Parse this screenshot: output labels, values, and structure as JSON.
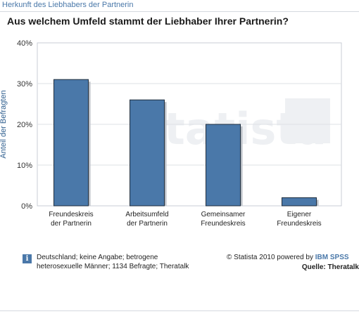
{
  "header": {
    "title": "Herkunft des Liebhabers der Partnerin"
  },
  "chart_data": {
    "type": "bar",
    "title": "Aus welchem Umfeld stammt der Liebhaber Ihrer Partnerin?",
    "ylabel": "Anteil der Befragten",
    "xlabel": "",
    "categories": [
      [
        "Freundeskreis",
        "der Partnerin"
      ],
      [
        "Arbeitsumfeld",
        "der Partnerin"
      ],
      [
        "Gemeinsamer",
        "Freundeskreis"
      ],
      [
        "Eigener",
        "Freundeskreis"
      ]
    ],
    "values": [
      31,
      26,
      20,
      2
    ],
    "unit": "%",
    "ylim": [
      0,
      40
    ],
    "yticks": [
      "0%",
      "10%",
      "20%",
      "30%",
      "40%"
    ],
    "grid": true,
    "bar_color": "#4a78a9",
    "watermark": "statista"
  },
  "footer": {
    "note": "Deutschland; keine Angabe; betrogene heterosexuelle Männer; 1134 Befragte; Theratalk",
    "info_icon": "i",
    "credit_prefix": "© Statista 2010 powered by ",
    "credit_brand": "IBM SPSS",
    "source": "Quelle: Theratalk"
  }
}
